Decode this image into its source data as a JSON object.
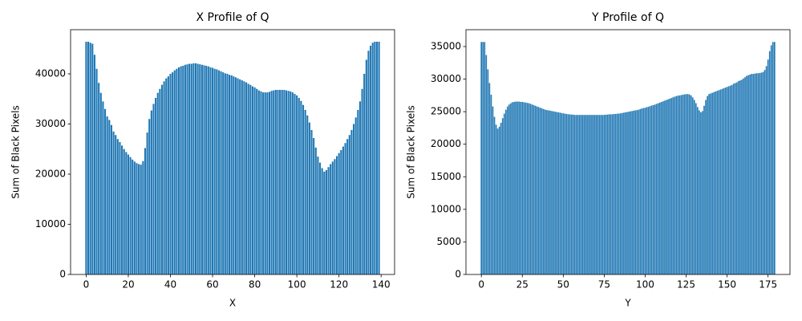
{
  "chart_data": [
    {
      "type": "bar",
      "title": "X Profile of Q",
      "x_label": "X",
      "y_label": "Sum of Black Pixels",
      "color": "#1f77b4",
      "x": [
        0,
        1,
        2,
        3,
        4,
        5,
        6,
        7,
        8,
        9,
        10,
        11,
        12,
        13,
        14,
        15,
        16,
        17,
        18,
        19,
        20,
        21,
        22,
        23,
        24,
        25,
        26,
        27,
        28,
        29,
        30,
        31,
        32,
        33,
        34,
        35,
        36,
        37,
        38,
        39,
        40,
        41,
        42,
        43,
        44,
        45,
        46,
        47,
        48,
        49,
        50,
        51,
        52,
        53,
        54,
        55,
        56,
        57,
        58,
        59,
        60,
        61,
        62,
        63,
        64,
        65,
        66,
        67,
        68,
        69,
        70,
        71,
        72,
        73,
        74,
        75,
        76,
        77,
        78,
        79,
        80,
        81,
        82,
        83,
        84,
        85,
        86,
        87,
        88,
        89,
        90,
        91,
        92,
        93,
        94,
        95,
        96,
        97,
        98,
        99,
        100,
        101,
        102,
        103,
        104,
        105,
        106,
        107,
        108,
        109,
        110,
        111,
        112,
        113,
        114,
        115,
        116,
        117,
        118,
        119,
        120,
        121,
        122,
        123,
        124,
        125,
        126,
        127,
        128,
        129,
        130,
        131,
        132,
        133,
        134,
        135,
        136,
        137,
        138,
        139
      ],
      "values": [
        46400,
        46400,
        46200,
        46000,
        43800,
        41000,
        38200,
        36200,
        34500,
        33000,
        31500,
        30800,
        29800,
        28500,
        27800,
        27000,
        26400,
        25700,
        25000,
        24400,
        23900,
        23400,
        22900,
        22500,
        22200,
        22000,
        21900,
        22600,
        25200,
        28300,
        31000,
        32700,
        34000,
        35200,
        36200,
        37000,
        37800,
        38500,
        39100,
        39500,
        40000,
        40300,
        40700,
        41000,
        41300,
        41500,
        41600,
        41800,
        41900,
        42000,
        42000,
        42100,
        42100,
        42000,
        41900,
        41800,
        41700,
        41600,
        41500,
        41300,
        41200,
        41000,
        40900,
        40700,
        40500,
        40300,
        40100,
        40000,
        39800,
        39700,
        39500,
        39300,
        39100,
        38900,
        38700,
        38500,
        38300,
        38000,
        37800,
        37500,
        37300,
        37000,
        36700,
        36500,
        36300,
        36300,
        36300,
        36400,
        36600,
        36700,
        36800,
        36800,
        36800,
        36800,
        36800,
        36700,
        36600,
        36500,
        36300,
        36000,
        35700,
        35200,
        34600,
        33800,
        32800,
        31700,
        30300,
        28800,
        27200,
        25300,
        23500,
        22300,
        21200,
        20500,
        20800,
        21400,
        22000,
        22500,
        23000,
        23600,
        24200,
        24800,
        25500,
        26200,
        27000,
        27800,
        28800,
        30000,
        31300,
        32800,
        34500,
        37000,
        40000,
        42800,
        44600,
        45600,
        46200,
        46400,
        46400,
        46400
      ],
      "xlim": [
        -7.39,
        146.39
      ],
      "xticks": [
        0,
        20,
        40,
        60,
        80,
        100,
        120,
        140
      ],
      "ylim": [
        0,
        48800
      ],
      "yticks": [
        0,
        10000,
        20000,
        30000,
        40000
      ]
    },
    {
      "type": "bar",
      "title": "Y Profile of Q",
      "x_label": "Y",
      "y_label": "Sum of Black Pixels",
      "color": "#1f77b4",
      "x": [
        0,
        1,
        2,
        3,
        4,
        5,
        6,
        7,
        8,
        9,
        10,
        11,
        12,
        13,
        14,
        15,
        16,
        17,
        18,
        19,
        20,
        21,
        22,
        23,
        24,
        25,
        26,
        27,
        28,
        29,
        30,
        31,
        32,
        33,
        34,
        35,
        36,
        37,
        38,
        39,
        40,
        41,
        42,
        43,
        44,
        45,
        46,
        47,
        48,
        49,
        50,
        51,
        52,
        53,
        54,
        55,
        56,
        57,
        58,
        59,
        60,
        61,
        62,
        63,
        64,
        65,
        66,
        67,
        68,
        69,
        70,
        71,
        72,
        73,
        74,
        75,
        76,
        77,
        78,
        79,
        80,
        81,
        82,
        83,
        84,
        85,
        86,
        87,
        88,
        89,
        90,
        91,
        92,
        93,
        94,
        95,
        96,
        97,
        98,
        99,
        100,
        101,
        102,
        103,
        104,
        105,
        106,
        107,
        108,
        109,
        110,
        111,
        112,
        113,
        114,
        115,
        116,
        117,
        118,
        119,
        120,
        121,
        122,
        123,
        124,
        125,
        126,
        127,
        128,
        129,
        130,
        131,
        132,
        133,
        134,
        135,
        136,
        137,
        138,
        139,
        140,
        141,
        142,
        143,
        144,
        145,
        146,
        147,
        148,
        149,
        150,
        151,
        152,
        153,
        154,
        155,
        156,
        157,
        158,
        159,
        160,
        161,
        162,
        163,
        164,
        165,
        166,
        167,
        168,
        169,
        170,
        171,
        172,
        173,
        174,
        175,
        176,
        177,
        178,
        179
      ],
      "values": [
        35700,
        35700,
        35700,
        33700,
        31500,
        29400,
        27600,
        25800,
        24200,
        23000,
        22400,
        22700,
        23300,
        24000,
        24700,
        25300,
        25800,
        26100,
        26300,
        26450,
        26500,
        26550,
        26550,
        26550,
        26500,
        26500,
        26450,
        26400,
        26350,
        26300,
        26200,
        26100,
        26000,
        25900,
        25800,
        25700,
        25600,
        25500,
        25400,
        25300,
        25250,
        25200,
        25150,
        25100,
        25050,
        25000,
        24950,
        24900,
        24850,
        24800,
        24750,
        24700,
        24650,
        24600,
        24600,
        24550,
        24550,
        24500,
        24500,
        24500,
        24500,
        24500,
        24500,
        24500,
        24500,
        24500,
        24500,
        24500,
        24500,
        24500,
        24500,
        24500,
        24500,
        24500,
        24500,
        24500,
        24550,
        24550,
        24600,
        24600,
        24600,
        24650,
        24650,
        24700,
        24700,
        24750,
        24800,
        24850,
        24900,
        24950,
        25000,
        25050,
        25100,
        25150,
        25200,
        25250,
        25300,
        25400,
        25500,
        25550,
        25600,
        25700,
        25750,
        25850,
        25950,
        26000,
        26100,
        26200,
        26300,
        26400,
        26500,
        26600,
        26700,
        26800,
        26900,
        27000,
        27100,
        27200,
        27300,
        27400,
        27450,
        27500,
        27550,
        27600,
        27650,
        27700,
        27700,
        27650,
        27500,
        27200,
        26800,
        26300,
        25700,
        25200,
        24900,
        25100,
        25900,
        26800,
        27400,
        27700,
        27800,
        27900,
        28000,
        28100,
        28200,
        28300,
        28400,
        28500,
        28600,
        28700,
        28800,
        28900,
        29000,
        29100,
        29300,
        29400,
        29500,
        29700,
        29800,
        29900,
        30100,
        30300,
        30500,
        30600,
        30700,
        30800,
        30800,
        30850,
        30900,
        30900,
        30950,
        31000,
        31100,
        31400,
        32000,
        33000,
        34300,
        35200,
        35700,
        35700
      ],
      "xlim": [
        -9.39,
        188.39
      ],
      "xticks": [
        0,
        25,
        50,
        75,
        100,
        125,
        150,
        175
      ],
      "ylim": [
        0,
        37590
      ],
      "yticks": [
        0,
        5000,
        10000,
        15000,
        20000,
        25000,
        30000,
        35000
      ]
    }
  ]
}
